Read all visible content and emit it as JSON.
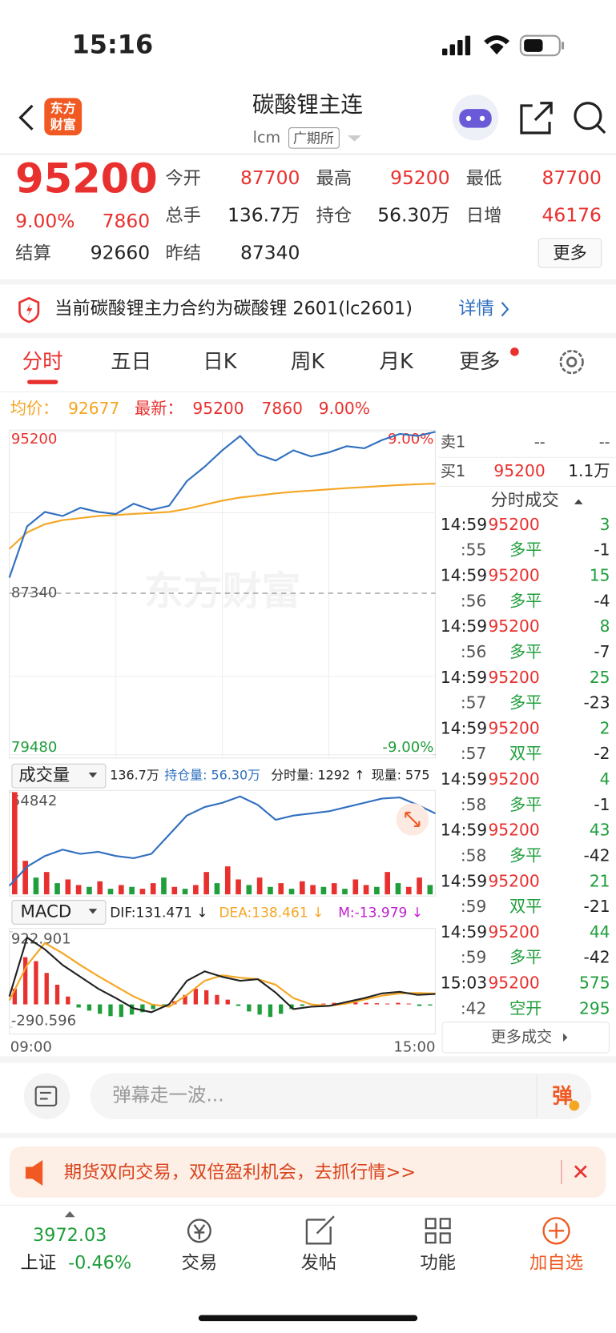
{
  "status_bar": {
    "time": "15:16"
  },
  "header": {
    "logo": [
      "东方",
      "财富"
    ],
    "title": "碳酸锂主连",
    "code": "lcm",
    "exchange": "广期所"
  },
  "quote": {
    "last": 95200,
    "change_pct": "9.00%",
    "change": 7860,
    "fields": [
      {
        "label": "今开",
        "value": 87700
      },
      {
        "label": "最高",
        "value": 95200
      },
      {
        "label": "最低",
        "value": 87700
      },
      {
        "label": "总手",
        "value": "136.7万"
      },
      {
        "label": "持仓",
        "value": "56.30万"
      },
      {
        "label": "日增",
        "value": 46176
      },
      {
        "label": "结算",
        "value": 92660
      },
      {
        "label": "昨结",
        "value": 87340
      }
    ],
    "more_button": "更多"
  },
  "notice": {
    "text": "当前碳酸锂主力合约为碳酸锂 2601(lc2601)",
    "link": "详情"
  },
  "tabs": {
    "items": [
      "分时",
      "五日",
      "日K",
      "周K",
      "月K",
      "更多"
    ],
    "active": 0
  },
  "summary": {
    "avg_label": "均价：",
    "avg": 92677,
    "last_label": "最新：",
    "last": 95200,
    "change": 7860,
    "change_pct": "9.00%"
  },
  "intraday": {
    "ylim": [
      79480,
      95200
    ],
    "yticks": [
      79480,
      87340,
      95200
    ],
    "y2lim": [
      -9,
      9
    ],
    "y2ticks": [
      {
        "value": 9,
        "label": "9.00%"
      },
      {
        "value": -9,
        "label": "-9.00%"
      }
    ],
    "watermark": "东方财富",
    "price": {
      "color": "#2f6fc0",
      "values": [
        88100,
        90600,
        91300,
        91100,
        91500,
        91300,
        91200,
        91700,
        91400,
        91600,
        92800,
        93500,
        94300,
        95000,
        94100,
        93800,
        94300,
        94000,
        94200,
        94500,
        94400,
        94800,
        95100,
        95000,
        95200
      ]
    },
    "average": {
      "color": "#f5a623",
      "values": [
        89500,
        90300,
        90700,
        90900,
        91000,
        91100,
        91150,
        91200,
        91250,
        91300,
        91450,
        91650,
        91850,
        92000,
        92100,
        92200,
        92280,
        92340,
        92400,
        92460,
        92510,
        92560,
        92610,
        92650,
        92677
      ]
    }
  },
  "volume": {
    "label": "成交量",
    "total": "136.7万",
    "oi_label": "持仓量: 56.30万",
    "tick_volume": "分时量: 1292 ↑",
    "current": "现量: 575",
    "ylim": [
      0,
      54842
    ],
    "yticks": [
      54842
    ],
    "values": [
      54842,
      18000,
      9000,
      12000,
      6000,
      8000,
      5000,
      4000,
      7000,
      3000,
      5000,
      4000,
      3000,
      6000,
      9000,
      4000,
      3000,
      5000,
      12000,
      6000,
      15000,
      8000,
      5000,
      9000,
      4000,
      6000,
      3000,
      7000,
      5000,
      4000,
      6000,
      3000,
      8000,
      5000,
      4000,
      12000,
      6000,
      4000,
      9000,
      5000
    ],
    "rising": [
      true,
      true,
      false,
      true,
      false,
      true,
      true,
      false,
      true,
      false,
      true,
      false,
      true,
      true,
      false,
      true,
      false,
      true,
      true,
      false,
      true,
      true,
      false,
      true,
      false,
      true,
      false,
      true,
      true,
      false,
      true,
      false,
      true,
      true,
      false,
      true,
      false,
      true,
      true,
      false
    ],
    "open_interest": {
      "color": "#2f6fc0",
      "values": [
        52.1,
        53.0,
        53.5,
        53.8,
        53.6,
        53.7,
        53.5,
        53.4,
        53.6,
        54.5,
        55.4,
        55.8,
        56.0,
        56.3,
        55.9,
        55.2,
        55.4,
        55.5,
        55.6,
        55.8,
        56.0,
        56.2,
        56.25,
        55.9,
        55.5
      ]
    }
  },
  "macd": {
    "label": "MACD",
    "dif_label": "DIF:131.471 ↓",
    "dea_label": "DEA:138.461 ↓",
    "m_label": "M:-13.979 ↓",
    "ylim": [
      -290.596,
      922.901
    ],
    "yticks": [
      -290.596,
      922.901
    ],
    "dif": {
      "color": "#222222",
      "values": [
        100,
        850,
        700,
        500,
        350,
        200,
        80,
        -50,
        -100,
        0,
        300,
        420,
        350,
        300,
        320,
        150,
        -60,
        -30,
        -20,
        30,
        80,
        140,
        160,
        120,
        131.471
      ]
    },
    "dea": {
      "color": "#f5a623",
      "values": [
        50,
        500,
        780,
        650,
        500,
        360,
        230,
        100,
        0,
        -30,
        120,
        300,
        370,
        340,
        320,
        250,
        80,
        0,
        -20,
        10,
        60,
        110,
        140,
        145,
        138.461
      ]
    },
    "hist": [
      200,
      600,
      550,
      400,
      250,
      100,
      -40,
      -80,
      -120,
      -150,
      -160,
      -130,
      -100,
      -60,
      -20,
      40,
      120,
      200,
      180,
      120,
      60,
      -20,
      -90,
      -130,
      -160,
      -120,
      -60,
      -20,
      -10,
      10,
      20,
      30,
      25,
      20,
      15,
      10,
      20,
      10,
      -20,
      -13.979
    ]
  },
  "time_axis": [
    "09:00",
    "15:00"
  ],
  "order_book": {
    "ask": {
      "label": "卖1",
      "price": "--",
      "volume": "--"
    },
    "bid": {
      "label": "买1",
      "price": 95200,
      "volume": "1.1万"
    }
  },
  "trades": {
    "title": "分时成交",
    "more": "更多成交",
    "rows": [
      {
        "time": "14:59",
        "price": 95200,
        "volume": 3,
        "color": "#1f9e3b"
      },
      {
        "time": ":55",
        "kind": "多平",
        "volume": -1,
        "color": "#222222"
      },
      {
        "time": "14:59",
        "price": 95200,
        "volume": 15,
        "color": "#1f9e3b"
      },
      {
        "time": ":56",
        "kind": "多平",
        "volume": -4,
        "color": "#222222"
      },
      {
        "time": "14:59",
        "price": 95200,
        "volume": 8,
        "color": "#1f9e3b"
      },
      {
        "time": ":56",
        "kind": "多平",
        "volume": -7,
        "color": "#222222"
      },
      {
        "time": "14:59",
        "price": 95200,
        "volume": 25,
        "color": "#1f9e3b"
      },
      {
        "time": ":57",
        "kind": "多平",
        "volume": -23,
        "color": "#222222"
      },
      {
        "time": "14:59",
        "price": 95200,
        "volume": 2,
        "color": "#1f9e3b"
      },
      {
        "time": ":57",
        "kind": "双平",
        "volume": -2,
        "color": "#222222"
      },
      {
        "time": "14:59",
        "price": 95200,
        "volume": 4,
        "color": "#1f9e3b"
      },
      {
        "time": ":58",
        "kind": "多平",
        "volume": -1,
        "color": "#222222"
      },
      {
        "time": "14:59",
        "price": 95200,
        "volume": 43,
        "color": "#1f9e3b"
      },
      {
        "time": ":58",
        "kind": "多平",
        "volume": -42,
        "color": "#222222"
      },
      {
        "time": "14:59",
        "price": 95200,
        "volume": 21,
        "color": "#1f9e3b"
      },
      {
        "time": ":59",
        "kind": "双平",
        "volume": -21,
        "color": "#222222"
      },
      {
        "time": "14:59",
        "price": 95200,
        "volume": 44,
        "color": "#1f9e3b"
      },
      {
        "time": ":59",
        "kind": "多平",
        "volume": -42,
        "color": "#222222"
      },
      {
        "time": "15:03",
        "price": 95200,
        "volume": 575,
        "color": "#1f9e3b"
      },
      {
        "time": ":42",
        "kind": "空开",
        "volume": 295,
        "color": "#1f9e3b"
      }
    ]
  },
  "comment": {
    "placeholder": "弹幕走一波...",
    "button": "弹"
  },
  "banner": {
    "text": "期货双向交易，双倍盈利机会，去抓行情>>"
  },
  "bottom_nav": {
    "index": {
      "value": 3972.03,
      "name": "上证",
      "change": "-0.46%"
    },
    "items": [
      "交易",
      "发帖",
      "功能",
      "加自选"
    ]
  }
}
